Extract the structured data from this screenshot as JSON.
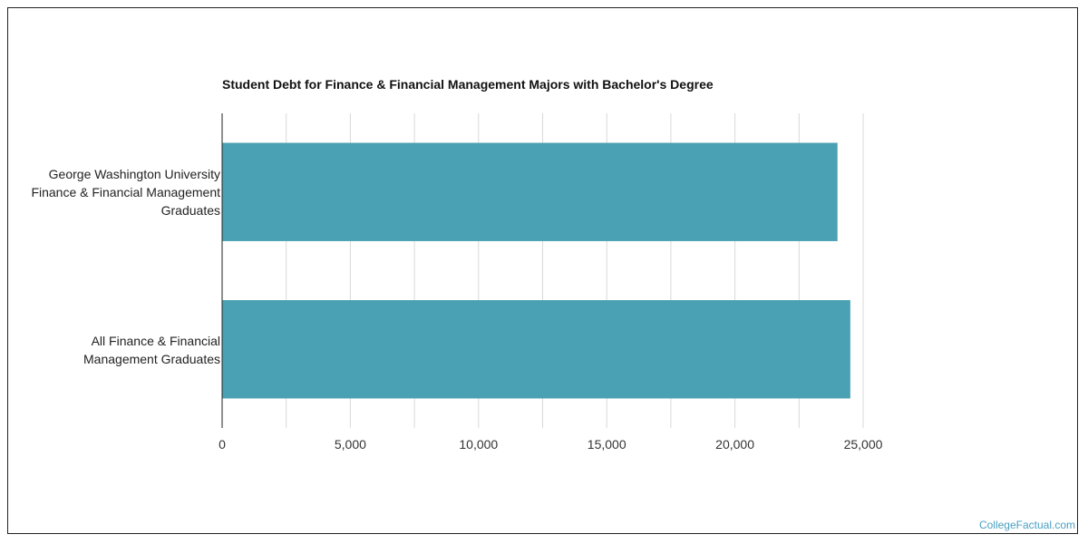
{
  "chart_data": {
    "type": "bar",
    "orientation": "horizontal",
    "title": "Student Debt for Finance & Financial Management Majors with Bachelor's Degree",
    "categories": [
      "George Washington University\nFinance & Financial Management\nGraduates",
      "All Finance & Financial\nManagement Graduates"
    ],
    "values": [
      24000,
      24500
    ],
    "xlim": [
      0,
      25000
    ],
    "x_ticks": [
      "0",
      "5,000",
      "10,000",
      "15,000",
      "20,000",
      "25,000"
    ],
    "grid": true,
    "colors": {
      "bar": "#4aa1b3",
      "grid": "#d9d9d9",
      "axis": "#222222"
    }
  },
  "watermark": "CollegeFactual.com"
}
